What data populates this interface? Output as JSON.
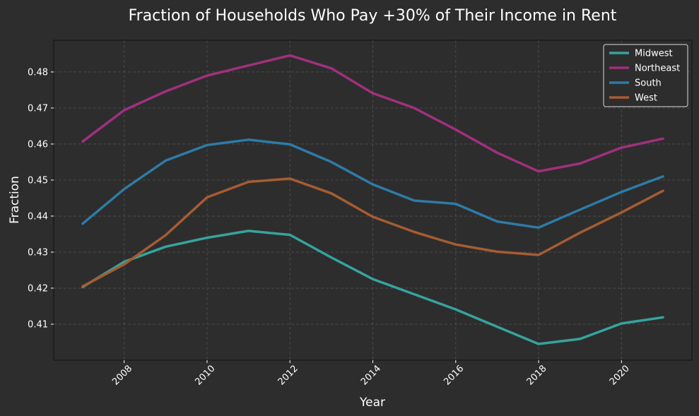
{
  "chart_data": {
    "type": "line",
    "title": "Fraction of Households Who Pay +30% of Their Income in Rent",
    "xlabel": "Year",
    "ylabel": "Fraction",
    "x": [
      2007,
      2008,
      2009,
      2010,
      2011,
      2012,
      2013,
      2014,
      2015,
      2016,
      2017,
      2018,
      2019,
      2020,
      2021
    ],
    "xlim": [
      2006.3,
      2021.7
    ],
    "ylim": [
      0.4,
      0.4888
    ],
    "xticks": [
      2008,
      2010,
      2012,
      2014,
      2016,
      2018,
      2020
    ],
    "yticks": [
      0.41,
      0.42,
      0.43,
      0.44,
      0.45,
      0.46,
      0.47,
      0.48
    ],
    "ytick_labels": [
      "0.41",
      "0.42",
      "0.43",
      "0.44",
      "0.45",
      "0.46",
      "0.47",
      "0.48"
    ],
    "grid": true,
    "legend_position": "top-right",
    "series": [
      {
        "name": "Midwest",
        "color": "#36a39e",
        "values": [
          0.4203,
          0.4273,
          0.4315,
          0.434,
          0.4359,
          0.4348,
          0.4285,
          0.4225,
          0.4183,
          0.4141,
          0.4093,
          0.4045,
          0.4059,
          0.4102,
          0.4119
        ]
      },
      {
        "name": "Northeast",
        "color": "#a0307e",
        "values": [
          0.4607,
          0.4694,
          0.4746,
          0.479,
          0.4818,
          0.4846,
          0.481,
          0.4741,
          0.47,
          0.464,
          0.4576,
          0.4524,
          0.4546,
          0.459,
          0.4615
        ]
      },
      {
        "name": "South",
        "color": "#2e7ba6",
        "values": [
          0.4379,
          0.4475,
          0.4554,
          0.4597,
          0.4612,
          0.4599,
          0.455,
          0.4488,
          0.4443,
          0.4434,
          0.4385,
          0.4368,
          0.4418,
          0.4467,
          0.451
        ]
      },
      {
        "name": "West",
        "color": "#a65c32",
        "values": [
          0.4205,
          0.4266,
          0.4347,
          0.4452,
          0.4495,
          0.4504,
          0.4463,
          0.4398,
          0.4356,
          0.4321,
          0.4301,
          0.4292,
          0.4354,
          0.441,
          0.447
        ]
      }
    ],
    "colors": {
      "background": "#2d2d2d",
      "grid": "#4a4a4a",
      "text": "#ffffff",
      "legend_border": "#d9d9d9"
    }
  }
}
